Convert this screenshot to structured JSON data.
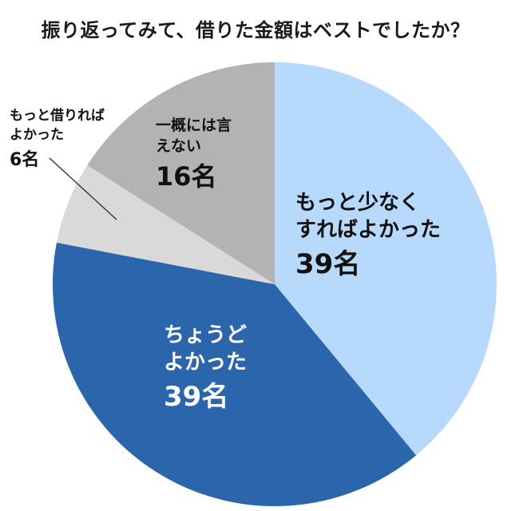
{
  "chart_data": {
    "type": "pie",
    "title": "振り返ってみて、借りた金額はベストでしたか？",
    "start_angle_deg": 0,
    "direction": "clockwise",
    "slices": [
      {
        "label_lines": [
          "もっと少なく",
          "すればよかった"
        ],
        "value": 39,
        "value_label": "39名",
        "color": "#b6d9fc",
        "text_color": "#111111"
      },
      {
        "label_lines": [
          "ちょうど",
          "よかった"
        ],
        "value": 39,
        "value_label": "39名",
        "color": "#2b65ab",
        "text_color": "#ffffff"
      },
      {
        "label_lines": [
          "もっと借りれば",
          "よかった"
        ],
        "value": 6,
        "value_label": "6名",
        "color": "#d9d9d9",
        "text_color": "#111111"
      },
      {
        "label_lines": [
          "一概には言",
          "えない"
        ],
        "value": 16,
        "value_label": "16名",
        "color": "#b3b3b3",
        "text_color": "#111111"
      }
    ]
  }
}
